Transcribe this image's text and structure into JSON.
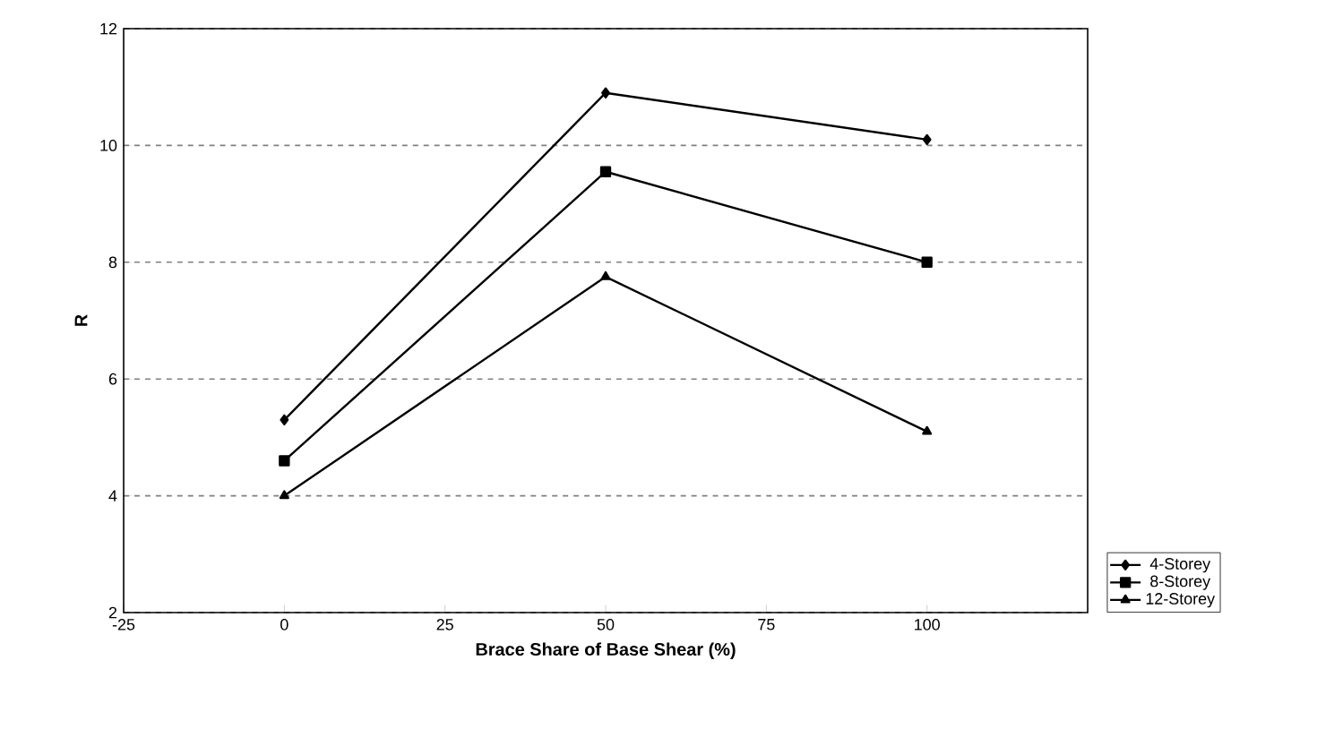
{
  "chart_data": {
    "type": "line",
    "xlabel": "Brace Share of Base Shear (%)",
    "ylabel": "R",
    "x": [
      0,
      50,
      100
    ],
    "series": [
      {
        "name": "4-Storey",
        "color": "#000000",
        "marker": "diamond",
        "values": [
          5.3,
          10.9,
          10.1
        ]
      },
      {
        "name": "8-Storey",
        "color": "#000000",
        "marker": "square",
        "values": [
          4.6,
          9.55,
          8.0
        ]
      },
      {
        "name": "12-Storey",
        "color": "#000000",
        "marker": "triangle",
        "values": [
          4.0,
          7.75,
          5.1
        ]
      }
    ],
    "xlim": [
      -25,
      125
    ],
    "xticks": [
      -25,
      0,
      25,
      50,
      75,
      100
    ],
    "ylim": [
      2,
      12
    ],
    "yticks": [
      2,
      4,
      6,
      8,
      10,
      12
    ],
    "grid": "y",
    "legend": "right",
    "line_style": "solid"
  }
}
